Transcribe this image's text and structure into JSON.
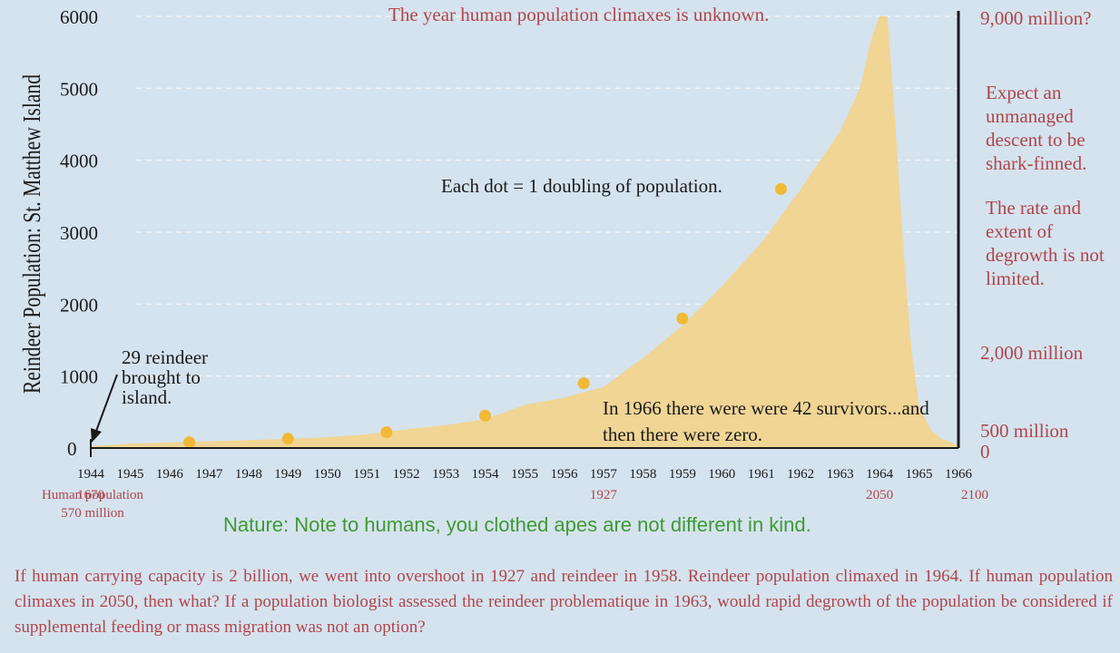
{
  "chart_data": {
    "type": "area",
    "ylabel": "Reindeer Population: St. Matthew Island",
    "xlabel": "",
    "x_range": [
      1944,
      1966
    ],
    "ylim": [
      0,
      6000
    ],
    "y_ticks": [
      0,
      1000,
      2000,
      3000,
      4000,
      5000,
      6000
    ],
    "y_tick_labels": [
      "0",
      "1000",
      "2000",
      "3000",
      "4000",
      "5000",
      "6000"
    ],
    "x_ticks": [
      1944,
      1945,
      1946,
      1947,
      1948,
      1949,
      1950,
      1951,
      1952,
      1953,
      1954,
      1955,
      1956,
      1957,
      1958,
      1959,
      1960,
      1961,
      1962,
      1963,
      1964,
      1965,
      1966
    ],
    "x_tick_labels": [
      "1944",
      "1945",
      "1946",
      "1947",
      "1948",
      "1949",
      "1950",
      "1951",
      "1952",
      "1953",
      "1954",
      "1955",
      "1956",
      "1957",
      "1958",
      "1959",
      "1960",
      "1961",
      "1962",
      "1963",
      "1964",
      "1965",
      "1966"
    ],
    "grid": "horizontal dashed",
    "series": [
      {
        "x": [
          1944,
          1945,
          1946,
          1947,
          1948,
          1949,
          1950,
          1951,
          1952,
          1953,
          1954,
          1955,
          1956,
          1957,
          1958,
          1959,
          1960,
          1961,
          1962,
          1963,
          1963.5,
          1963.8,
          1964,
          1964.2,
          1964.4,
          1964.6,
          1964.8,
          1965,
          1965.3,
          1965.6,
          1966
        ],
        "y": [
          29,
          60,
          80,
          95,
          110,
          130,
          150,
          190,
          260,
          320,
          400,
          600,
          700,
          850,
          1250,
          1700,
          2250,
          2850,
          3600,
          4400,
          5000,
          5700,
          6000,
          6000,
          4500,
          2800,
          1400,
          600,
          250,
          120,
          42
        ]
      }
    ],
    "doubling_points": [
      {
        "x": 1946.5,
        "y": 80
      },
      {
        "x": 1949,
        "y": 130
      },
      {
        "x": 1951.5,
        "y": 220
      },
      {
        "x": 1954,
        "y": 450
      },
      {
        "x": 1956.5,
        "y": 900
      },
      {
        "x": 1959,
        "y": 1800
      },
      {
        "x": 1961.5,
        "y": 3600
      }
    ],
    "secondary_x_labels": [
      {
        "at": 1944,
        "label": "1670"
      },
      {
        "at": 1957,
        "label": "1927"
      },
      {
        "at": 1964,
        "label": "2050"
      },
      {
        "at": 1966,
        "label": "2100"
      }
    ],
    "secondary_y_labels": [
      {
        "at": 6000,
        "label": "9,000 million?"
      },
      {
        "at": 1350,
        "label": "2,000 million"
      },
      {
        "at": 250,
        "label": "500 million"
      },
      {
        "at": 0,
        "label": "0"
      }
    ],
    "colors": {
      "area": "#f0d594",
      "dot": "#f2b935",
      "grid": "#f2f2f2",
      "axis": "#1a1a1a",
      "red_text": "#b0454a",
      "green_text": "#3e9a32",
      "background": "#d5e3ef"
    }
  },
  "annotations": {
    "top_note": "The year human population climaxes is unknown.",
    "dot_note": "Each dot = 1 doubling of population.",
    "intro_note": "29 reindeer brought to island.",
    "survivor_note": "In 1966 there were were 42 survivors...and then there were zero.",
    "right_note_1": "Expect an unmanaged descent to be shark-finned.",
    "right_note_2": "The rate and extent of degrowth is not limited.",
    "human_start_line1": "Human population",
    "human_start_line2": "570 million",
    "nature_note": "Nature: Note to humans, you clothed apes are not different in kind.",
    "footer": "If human carrying capacity is 2 billion, we went into overshoot in 1927 and reindeer in 1958. Reindeer population climaxed in 1964. If human population climaxes in 2050, then what? If a population biologist assessed the reindeer problematique in 1963, would rapid degrowth of the population be considered if supplemental feeding or mass migration was not an option?"
  }
}
